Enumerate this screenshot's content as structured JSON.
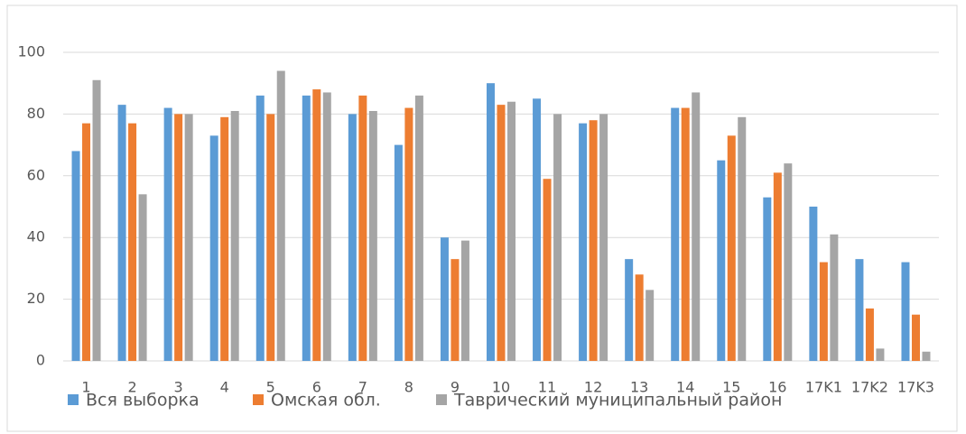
{
  "chart_data": {
    "type": "bar",
    "categories": [
      "1",
      "2",
      "3",
      "4",
      "5",
      "6",
      "7",
      "8",
      "9",
      "10",
      "11",
      "12",
      "13",
      "14",
      "15",
      "16",
      "17K1",
      "17K2",
      "17K3"
    ],
    "series": [
      {
        "name": "Вся выборка",
        "color": "#5b9bd5",
        "values": [
          68,
          83,
          82,
          73,
          86,
          86,
          80,
          70,
          40,
          90,
          85,
          77,
          33,
          82,
          65,
          53,
          50,
          33,
          32
        ]
      },
      {
        "name": "Омская обл.",
        "color": "#ed7d31",
        "values": [
          77,
          77,
          80,
          79,
          80,
          88,
          86,
          82,
          33,
          83,
          59,
          78,
          28,
          82,
          73,
          61,
          32,
          17,
          15
        ]
      },
      {
        "name": "Таврический муниципальный район",
        "color": "#a5a5a5",
        "values": [
          91,
          54,
          80,
          81,
          94,
          87,
          81,
          86,
          39,
          84,
          80,
          80,
          23,
          87,
          79,
          64,
          41,
          4,
          3
        ]
      }
    ],
    "ylim": [
      0,
      100
    ],
    "yticks": [
      0,
      20,
      40,
      60,
      80,
      100
    ],
    "grid": true,
    "legend": "bottom"
  }
}
